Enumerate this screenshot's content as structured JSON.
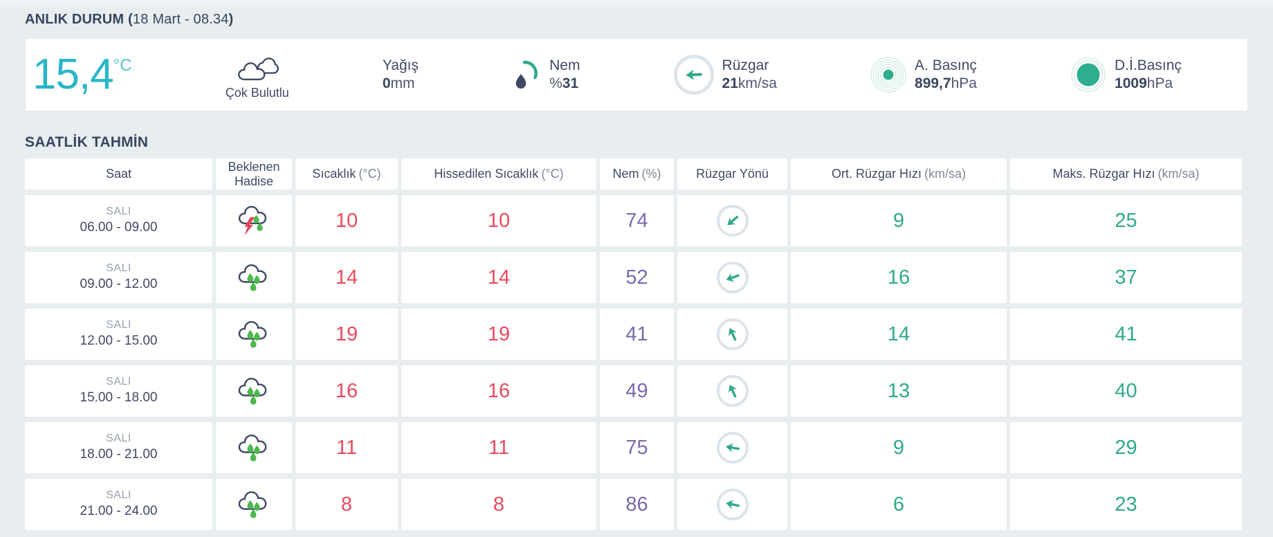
{
  "colors": {
    "accent_teal": "#2ab5c8",
    "green": "#2fa98c",
    "red": "#e84a5f",
    "purple": "#7b68ae",
    "navy": "#3e4a64"
  },
  "current": {
    "title_bold": "ANLIK DURUM (",
    "title_date": "18 Mart - 08.34",
    "title_close": ")",
    "temperature_value": "15,4",
    "temperature_unit": "°C",
    "condition_label": "Çok Bulutlu",
    "condition_icon": "clouds-icon",
    "precip_label": "Yağış",
    "precip_value": "0",
    "precip_unit": "mm",
    "humidity_label": "Nem",
    "humidity_prefix": "%",
    "humidity_value": "31",
    "humidity_icon": "humidity-drop-icon",
    "wind_label": "Rüzgar",
    "wind_value": "21",
    "wind_unit": "km/sa",
    "wind_deg": 177,
    "wind_icon": "wind-direction-icon",
    "pressure_label": "A. Basınç",
    "pressure_value": "899,7",
    "pressure_unit": "hPa",
    "pressure_icon": "ripple-circles-icon",
    "sea_pressure_label": "D.İ.Basınç",
    "sea_pressure_value": "1009",
    "sea_pressure_unit": "hPa",
    "sea_pressure_icon": "solid-circle-icon"
  },
  "hourly": {
    "title": "SAATLİK TAHMİN",
    "columns": [
      {
        "label": "Saat",
        "unit": ""
      },
      {
        "label": "Beklenen Hadise",
        "unit": ""
      },
      {
        "label": "Sıcaklık",
        "unit": "(°C)"
      },
      {
        "label": "Hissedilen Sıcaklık",
        "unit": "(°C)"
      },
      {
        "label": "Nem",
        "unit": "(%)"
      },
      {
        "label": "Rüzgar Yönü",
        "unit": ""
      },
      {
        "label": "Ort. Rüzgar Hızı",
        "unit": "(km/sa)"
      },
      {
        "label": "Maks. Rüzgar Hızı",
        "unit": "(km/sa)"
      }
    ],
    "rows": [
      {
        "day": "SALI",
        "time": "06.00 - 09.00",
        "icon": "storm-rain-icon",
        "temp": "10",
        "feels": "10",
        "humidity": "74",
        "wind_deg": 140,
        "avg_wind": "9",
        "max_wind": "25"
      },
      {
        "day": "SALI",
        "time": "09.00 - 12.00",
        "icon": "rain-icon",
        "temp": "14",
        "feels": "14",
        "humidity": "52",
        "wind_deg": 160,
        "avg_wind": "16",
        "max_wind": "37"
      },
      {
        "day": "SALI",
        "time": "12.00 - 15.00",
        "icon": "rain-icon",
        "temp": "19",
        "feels": "19",
        "humidity": "41",
        "wind_deg": 245,
        "avg_wind": "14",
        "max_wind": "41"
      },
      {
        "day": "SALI",
        "time": "15.00 - 18.00",
        "icon": "rain-icon",
        "temp": "16",
        "feels": "16",
        "humidity": "49",
        "wind_deg": 245,
        "avg_wind": "13",
        "max_wind": "40"
      },
      {
        "day": "SALI",
        "time": "18.00 - 21.00",
        "icon": "rain-icon",
        "temp": "11",
        "feels": "11",
        "humidity": "75",
        "wind_deg": 190,
        "avg_wind": "9",
        "max_wind": "29"
      },
      {
        "day": "SALI",
        "time": "21.00 - 24.00",
        "icon": "rain-icon",
        "temp": "8",
        "feels": "8",
        "humidity": "86",
        "wind_deg": 192,
        "avg_wind": "6",
        "max_wind": "23"
      }
    ]
  }
}
